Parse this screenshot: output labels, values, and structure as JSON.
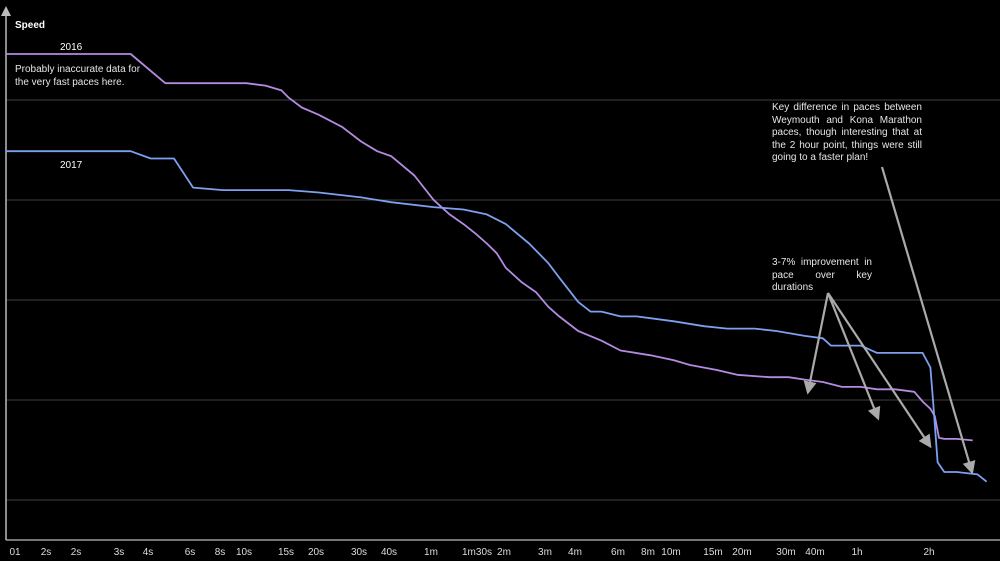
{
  "chart_data": {
    "type": "line",
    "title": "",
    "xlabel": "",
    "ylabel": "Speed",
    "x_ticks": [
      "01",
      "2s",
      "2s",
      "3s",
      "4s",
      "6s",
      "8s",
      "10s",
      "15s",
      "20s",
      "30s",
      "40s",
      "1m",
      "1m30s",
      "2m",
      "3m",
      "4m",
      "6m",
      "8m",
      "10m",
      "15m",
      "20m",
      "30m",
      "40m",
      "1h",
      "2h"
    ],
    "x_scale": "log",
    "grid": "horizontal",
    "series": [
      {
        "name": "2016",
        "color": "#b48be0",
        "points": [
          [
            1,
            100
          ],
          [
            3.3,
            100
          ],
          [
            4.6,
            94
          ],
          [
            9,
            94
          ],
          [
            10,
            94
          ],
          [
            12,
            93.5
          ],
          [
            14,
            92.5
          ],
          [
            15,
            91
          ],
          [
            17,
            89
          ],
          [
            20,
            87.5
          ],
          [
            25,
            85
          ],
          [
            30,
            82
          ],
          [
            35,
            80
          ],
          [
            40,
            79
          ],
          [
            50,
            75
          ],
          [
            60,
            70
          ],
          [
            70,
            67
          ],
          [
            80,
            65
          ],
          [
            90,
            63
          ],
          [
            100,
            61
          ],
          [
            110,
            59
          ],
          [
            120,
            56
          ],
          [
            140,
            53
          ],
          [
            160,
            51
          ],
          [
            180,
            48
          ],
          [
            200,
            46
          ],
          [
            240,
            43
          ],
          [
            300,
            41
          ],
          [
            360,
            39
          ],
          [
            480,
            38
          ],
          [
            600,
            37
          ],
          [
            700,
            36
          ],
          [
            900,
            35
          ],
          [
            1100,
            34
          ],
          [
            1500,
            33.5
          ],
          [
            1800,
            33.5
          ],
          [
            2100,
            33
          ],
          [
            2500,
            32.5
          ],
          [
            3000,
            31.5
          ],
          [
            3600,
            31.5
          ],
          [
            4200,
            31
          ],
          [
            5000,
            31
          ],
          [
            6000,
            30.5
          ],
          [
            6500,
            28.5
          ],
          [
            7000,
            27
          ],
          [
            7300,
            25.5
          ],
          [
            7600,
            21
          ],
          [
            8000,
            20.8
          ],
          [
            9000,
            20.8
          ],
          [
            10500,
            20.5
          ]
        ]
      },
      {
        "name": "2017",
        "color": "#7da0f0",
        "points": [
          [
            1,
            80
          ],
          [
            3.3,
            80
          ],
          [
            4.0,
            78.5
          ],
          [
            5,
            78.5
          ],
          [
            6,
            72.5
          ],
          [
            8,
            72
          ],
          [
            10,
            72
          ],
          [
            15,
            72
          ],
          [
            20,
            71.5
          ],
          [
            30,
            70.5
          ],
          [
            40,
            69.5
          ],
          [
            60,
            68.5
          ],
          [
            80,
            68
          ],
          [
            100,
            67
          ],
          [
            120,
            65
          ],
          [
            150,
            61
          ],
          [
            180,
            57
          ],
          [
            200,
            54
          ],
          [
            240,
            49
          ],
          [
            270,
            47
          ],
          [
            300,
            47
          ],
          [
            360,
            46
          ],
          [
            420,
            46
          ],
          [
            600,
            45
          ],
          [
            800,
            44
          ],
          [
            1000,
            43.5
          ],
          [
            1300,
            43.5
          ],
          [
            1600,
            43
          ],
          [
            2100,
            42
          ],
          [
            2500,
            41.5
          ],
          [
            2700,
            40
          ],
          [
            3600,
            40
          ],
          [
            4200,
            38.5
          ],
          [
            5000,
            38.5
          ],
          [
            6500,
            38.5
          ],
          [
            7000,
            35.5
          ],
          [
            7200,
            28
          ],
          [
            7500,
            16
          ],
          [
            8000,
            14
          ],
          [
            9000,
            14
          ],
          [
            11000,
            13.5
          ],
          [
            12000,
            12
          ]
        ]
      }
    ],
    "annotations": [
      "Probably inaccurate data for the very fast paces here.",
      "Key difference in paces between Weymouth and Kona Marathon paces, though interesting that at the 2 hour point, things were still going to a faster plan!",
      "3-7% improvement in pace over key durations"
    ]
  }
}
